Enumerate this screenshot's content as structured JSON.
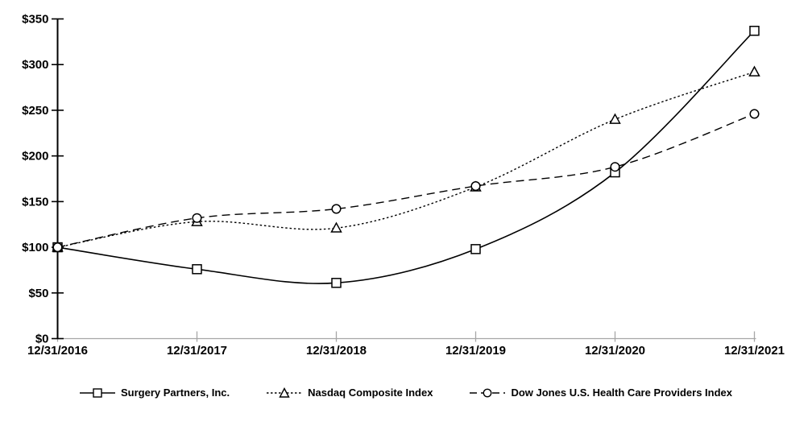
{
  "chart_data": {
    "type": "line",
    "title": "",
    "x_categories": [
      "12/31/2016",
      "12/31/2017",
      "12/31/2018",
      "12/31/2019",
      "12/31/2020",
      "12/31/2021"
    ],
    "series": [
      {
        "name": "Surgery Partners, Inc.",
        "values": [
          100,
          76,
          61,
          98,
          182,
          337
        ],
        "marker": "square",
        "line_style": "solid"
      },
      {
        "name": "Nasdaq Composite Index",
        "values": [
          100,
          128,
          121,
          166,
          240,
          292
        ],
        "marker": "triangle",
        "line_style": "dotted"
      },
      {
        "name": "Dow Jones U.S. Health Care Providers Index",
        "values": [
          100,
          132,
          142,
          167,
          188,
          246
        ],
        "marker": "circle",
        "line_style": "dashed"
      }
    ],
    "ylim": [
      0,
      350
    ],
    "y_tick_interval": 50,
    "y_tick_labels": [
      "$350",
      "$300",
      "$250",
      "$200",
      "$150",
      "$100",
      "$50",
      "$0"
    ],
    "y_tick_prefix": "$",
    "grid": false,
    "smoothed_lines": true,
    "legend_position": "bottom",
    "colors": {
      "series": "#000000",
      "y_axis": "#000000",
      "x_axis": "#a6a6a6",
      "background": "#ffffff",
      "marker_fill": "#ffffff"
    }
  }
}
